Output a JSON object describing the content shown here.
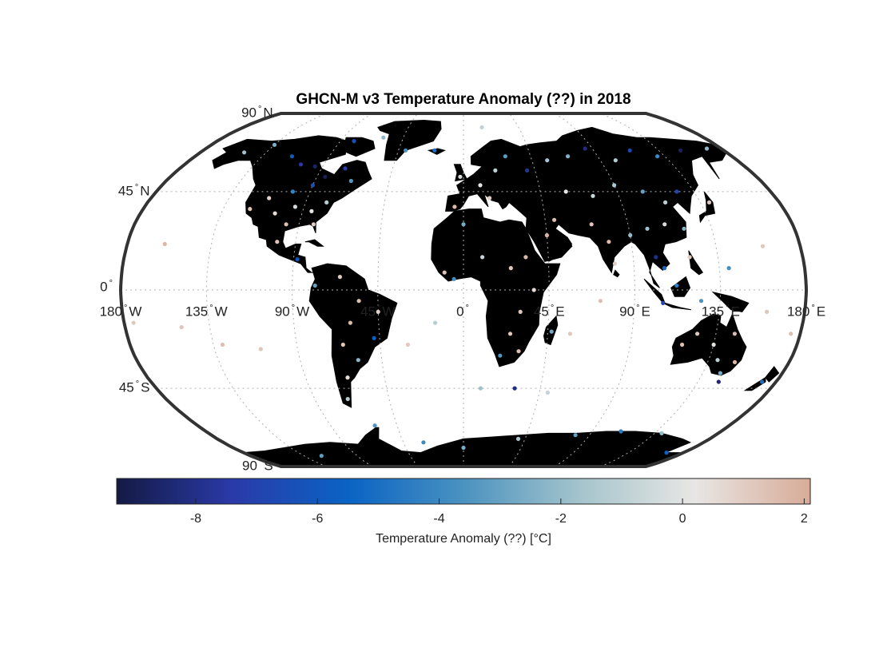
{
  "title": "GHCN-M v3 Temperature Anomaly (??) in 2018",
  "map": {
    "projection": "Robinson",
    "ocean_color": "#ffffff",
    "land_color": "#000000",
    "graticule_color": "#b0b0b0",
    "frame_color": "#333333",
    "lat_labels": [
      {
        "deg": 90,
        "text": "90",
        "hemi": "N"
      },
      {
        "deg": 45,
        "text": "45",
        "hemi": "N"
      },
      {
        "deg": 0,
        "text": "0",
        "hemi": ""
      },
      {
        "deg": -45,
        "text": "45",
        "hemi": "S"
      },
      {
        "deg": -90,
        "text": "90",
        "hemi": "S"
      }
    ],
    "lon_labels": [
      {
        "deg": -180,
        "text": "180",
        "hemi": "W"
      },
      {
        "deg": -135,
        "text": "135",
        "hemi": "W"
      },
      {
        "deg": -90,
        "text": "90",
        "hemi": "W"
      },
      {
        "deg": -45,
        "text": "45",
        "hemi": "W"
      },
      {
        "deg": 0,
        "text": "0",
        "hemi": ""
      },
      {
        "deg": 45,
        "text": "45",
        "hemi": "E"
      },
      {
        "deg": 90,
        "text": "90",
        "hemi": "E"
      },
      {
        "deg": 135,
        "text": "135",
        "hemi": "E"
      },
      {
        "deg": 180,
        "text": "180",
        "hemi": "E"
      }
    ]
  },
  "colorbar": {
    "label": "Temperature Anomaly (??) [°C]",
    "min": -9.3,
    "max": 2.1,
    "ticks": [
      -8,
      -6,
      -4,
      -2,
      0,
      2
    ],
    "colors": [
      "#141a44",
      "#2a3aa8",
      "#0a63c4",
      "#4a92c0",
      "#a4c4cc",
      "#e8e6e4",
      "#d8ab98"
    ]
  },
  "chart_data": {
    "type": "scatter",
    "title": "GHCN-M v3 Temperature Anomaly (??) in 2018",
    "colorbar_label": "Temperature Anomaly (??) [°C]",
    "value_range": [
      -9.3,
      2.1
    ],
    "note_units": "lon, lat in degrees; value in °C",
    "stations": [
      {
        "lon": -150,
        "lat": 64,
        "value": -1.8
      },
      {
        "lon": -135,
        "lat": 68,
        "value": -2.5
      },
      {
        "lon": -115,
        "lat": 62,
        "value": -5.8
      },
      {
        "lon": -105,
        "lat": 58,
        "value": -7.5
      },
      {
        "lon": -95,
        "lat": 57,
        "value": -8.6
      },
      {
        "lon": -85,
        "lat": 52,
        "value": -8.9
      },
      {
        "lon": -75,
        "lat": 56,
        "value": -7.2
      },
      {
        "lon": -68,
        "lat": 50,
        "value": -3.4
      },
      {
        "lon": -90,
        "lat": 48,
        "value": -6.5
      },
      {
        "lon": -100,
        "lat": 45,
        "value": -4.2
      },
      {
        "lon": -112,
        "lat": 42,
        "value": 0.8
      },
      {
        "lon": -120,
        "lat": 37,
        "value": 1.3
      },
      {
        "lon": -105,
        "lat": 35,
        "value": 0.6
      },
      {
        "lon": -95,
        "lat": 38,
        "value": -0.4
      },
      {
        "lon": -85,
        "lat": 36,
        "value": 0.3
      },
      {
        "lon": -78,
        "lat": 40,
        "value": -1.2
      },
      {
        "lon": -82,
        "lat": 30,
        "value": 1.0
      },
      {
        "lon": -97,
        "lat": 30,
        "value": 1.5
      },
      {
        "lon": -100,
        "lat": 22,
        "value": 1.2
      },
      {
        "lon": -88,
        "lat": 14,
        "value": -6.2
      },
      {
        "lon": -78,
        "lat": 2,
        "value": -3.0
      },
      {
        "lon": -65,
        "lat": 6,
        "value": 1.1
      },
      {
        "lon": -55,
        "lat": -5,
        "value": 1.4
      },
      {
        "lon": -45,
        "lat": -10,
        "value": 0.9
      },
      {
        "lon": -60,
        "lat": -15,
        "value": 1.6
      },
      {
        "lon": -48,
        "lat": -22,
        "value": -5.5
      },
      {
        "lon": -65,
        "lat": -25,
        "value": 1.2
      },
      {
        "lon": -58,
        "lat": -32,
        "value": -2.2
      },
      {
        "lon": -66,
        "lat": -40,
        "value": 0.5
      },
      {
        "lon": -70,
        "lat": -50,
        "value": -1.4
      },
      {
        "lon": -160,
        "lat": 21,
        "value": 1.7
      },
      {
        "lon": -150,
        "lat": -17,
        "value": 1.3
      },
      {
        "lon": -175,
        "lat": -15,
        "value": 1.1
      },
      {
        "lon": -130,
        "lat": -25,
        "value": 1.5
      },
      {
        "lon": -110,
        "lat": -27,
        "value": 1.2
      },
      {
        "lon": -2,
        "lat": 52,
        "value": -0.3
      },
      {
        "lon": 10,
        "lat": 48,
        "value": 0.2
      },
      {
        "lon": 20,
        "lat": 55,
        "value": -1.0
      },
      {
        "lon": 28,
        "lat": 62,
        "value": -3.2
      },
      {
        "lon": 15,
        "lat": 42,
        "value": 1.0
      },
      {
        "lon": -5,
        "lat": 38,
        "value": 1.6
      },
      {
        "lon": 0,
        "lat": 30,
        "value": -2.6
      },
      {
        "lon": 10,
        "lat": 15,
        "value": -0.8
      },
      {
        "lon": -10,
        "lat": 8,
        "value": 1.4
      },
      {
        "lon": -5,
        "lat": 5,
        "value": -3.8
      },
      {
        "lon": 25,
        "lat": 10,
        "value": 1.1
      },
      {
        "lon": 33,
        "lat": 15,
        "value": 1.7
      },
      {
        "lon": 37,
        "lat": 0,
        "value": 0.6
      },
      {
        "lon": 30,
        "lat": -10,
        "value": 1.3
      },
      {
        "lon": 25,
        "lat": -20,
        "value": 1.2
      },
      {
        "lon": 20,
        "lat": -30,
        "value": -3.5
      },
      {
        "lon": 30,
        "lat": -28,
        "value": 1.5
      },
      {
        "lon": 47,
        "lat": -19,
        "value": -2.8
      },
      {
        "lon": 40,
        "lat": 55,
        "value": -7.8
      },
      {
        "lon": 55,
        "lat": 60,
        "value": -1.6
      },
      {
        "lon": 70,
        "lat": 62,
        "value": -2.4
      },
      {
        "lon": 85,
        "lat": 66,
        "value": -8.2
      },
      {
        "lon": 100,
        "lat": 60,
        "value": -1.2
      },
      {
        "lon": 115,
        "lat": 65,
        "value": -6.8
      },
      {
        "lon": 130,
        "lat": 62,
        "value": -3.9
      },
      {
        "lon": 150,
        "lat": 65,
        "value": -8.8
      },
      {
        "lon": 170,
        "lat": 66,
        "value": -2.1
      },
      {
        "lon": 60,
        "lat": 45,
        "value": 0.2
      },
      {
        "lon": 75,
        "lat": 43,
        "value": -0.6
      },
      {
        "lon": 90,
        "lat": 48,
        "value": -1.4
      },
      {
        "lon": 105,
        "lat": 45,
        "value": -3.0
      },
      {
        "lon": 115,
        "lat": 40,
        "value": -1.1
      },
      {
        "lon": 125,
        "lat": 45,
        "value": -7.0
      },
      {
        "lon": 140,
        "lat": 40,
        "value": 1.2
      },
      {
        "lon": 50,
        "lat": 32,
        "value": 1.5
      },
      {
        "lon": 45,
        "lat": 25,
        "value": 1.8
      },
      {
        "lon": 70,
        "lat": 30,
        "value": 1.3
      },
      {
        "lon": 78,
        "lat": 22,
        "value": 1.6
      },
      {
        "lon": 80,
        "lat": 12,
        "value": 1.0
      },
      {
        "lon": 90,
        "lat": 25,
        "value": -2.0
      },
      {
        "lon": 100,
        "lat": 28,
        "value": -1.8
      },
      {
        "lon": 110,
        "lat": 30,
        "value": -0.3
      },
      {
        "lon": 120,
        "lat": 28,
        "value": -2.3
      },
      {
        "lon": 102,
        "lat": 15,
        "value": -8.0
      },
      {
        "lon": 106,
        "lat": 10,
        "value": -5.2
      },
      {
        "lon": 120,
        "lat": 15,
        "value": 1.1
      },
      {
        "lon": 112,
        "lat": 2,
        "value": -4.4
      },
      {
        "lon": 105,
        "lat": -6,
        "value": -6.8
      },
      {
        "lon": 125,
        "lat": -5,
        "value": -3.6
      },
      {
        "lon": 118,
        "lat": -25,
        "value": 1.4
      },
      {
        "lon": 125,
        "lat": -20,
        "value": 1.2
      },
      {
        "lon": 135,
        "lat": -25,
        "value": 0.4
      },
      {
        "lon": 145,
        "lat": -20,
        "value": 1.6
      },
      {
        "lon": 140,
        "lat": -32,
        "value": -1.0
      },
      {
        "lon": 150,
        "lat": -33,
        "value": 1.7
      },
      {
        "lon": 145,
        "lat": -38,
        "value": -2.6
      },
      {
        "lon": 147,
        "lat": -42,
        "value": -8.5
      },
      {
        "lon": 172,
        "lat": -42,
        "value": -5.0
      },
      {
        "lon": 160,
        "lat": -10,
        "value": 1.3
      },
      {
        "lon": 175,
        "lat": -20,
        "value": 1.5
      },
      {
        "lon": 140,
        "lat": 10,
        "value": -3.8
      },
      {
        "lon": 160,
        "lat": 20,
        "value": 1.2
      },
      {
        "lon": 72,
        "lat": -5,
        "value": 1.5
      },
      {
        "lon": 57,
        "lat": -20,
        "value": 1.2
      },
      {
        "lon": -15,
        "lat": -15,
        "value": -1.2
      },
      {
        "lon": -30,
        "lat": -25,
        "value": 1.1
      },
      {
        "lon": 10,
        "lat": -45,
        "value": -1.8
      },
      {
        "lon": 30,
        "lat": -45,
        "value": -8.2
      },
      {
        "lon": 50,
        "lat": -47,
        "value": -0.8
      },
      {
        "lon": -60,
        "lat": -63,
        "value": -3.5
      },
      {
        "lon": -30,
        "lat": -72,
        "value": -4.0
      },
      {
        "lon": 0,
        "lat": -75,
        "value": -2.6
      },
      {
        "lon": 40,
        "lat": -70,
        "value": -1.5
      },
      {
        "lon": 80,
        "lat": -68,
        "value": -3.0
      },
      {
        "lon": 110,
        "lat": -66,
        "value": -4.5
      },
      {
        "lon": 140,
        "lat": -67,
        "value": -2.0
      },
      {
        "lon": 166,
        "lat": -78,
        "value": -5.5
      },
      {
        "lon": -120,
        "lat": -80,
        "value": -3.2
      },
      {
        "lon": -40,
        "lat": 65,
        "value": -3.6
      },
      {
        "lon": -20,
        "lat": 65,
        "value": -5.0
      },
      {
        "lon": -60,
        "lat": 72,
        "value": -2.2
      },
      {
        "lon": 15,
        "lat": 78,
        "value": -0.9
      },
      {
        "lon": -80,
        "lat": 70,
        "value": -6.4
      }
    ]
  }
}
